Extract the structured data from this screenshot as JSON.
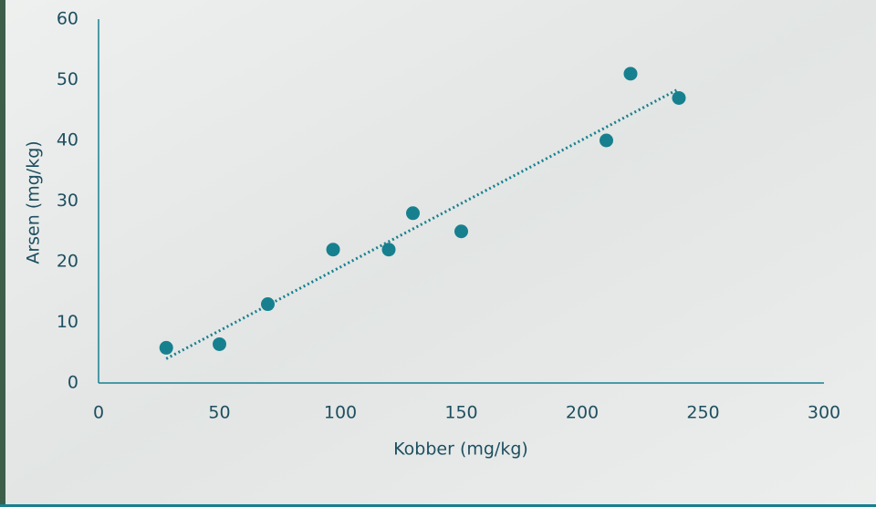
{
  "chart_data": {
    "type": "scatter",
    "x_label": "Kobber (mg/kg)",
    "y_label": "Arsen (mg/kg)",
    "x": [
      28,
      50,
      70,
      97,
      120,
      130,
      150,
      210,
      220,
      240
    ],
    "series": [
      {
        "color": "#17808f",
        "values": [
          5.8,
          6.4,
          13,
          22,
          22,
          28,
          25,
          40,
          51,
          47
        ]
      }
    ],
    "trendline": {
      "x": [
        28,
        240
      ],
      "y": [
        4,
        48.5
      ],
      "color": "#17808f"
    },
    "xlim": [
      0,
      300
    ],
    "xticks": [
      0,
      50,
      100,
      150,
      200,
      250,
      300
    ],
    "ylim": [
      0,
      60
    ],
    "yticks": [
      0,
      10,
      20,
      30,
      40,
      50,
      60
    ]
  }
}
